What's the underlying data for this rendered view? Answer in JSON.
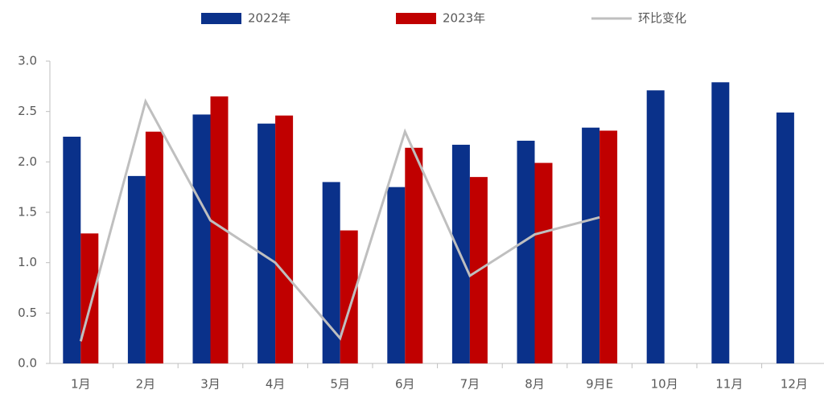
{
  "chart_data": {
    "type": "bar",
    "categories": [
      "1月",
      "2月",
      "3月",
      "4月",
      "5月",
      "6月",
      "7月",
      "8月",
      "9月E",
      "10月",
      "11月",
      "12月"
    ],
    "series": [
      {
        "name": "2022年",
        "type": "bar",
        "color": "#0a318a",
        "values": [
          2.25,
          1.86,
          2.47,
          2.38,
          1.8,
          1.75,
          2.17,
          2.21,
          2.34,
          2.71,
          2.79,
          2.49
        ]
      },
      {
        "name": "2023年",
        "type": "bar",
        "color": "#c00000",
        "values": [
          1.29,
          2.3,
          2.65,
          2.46,
          1.32,
          2.14,
          1.85,
          1.99,
          2.31,
          null,
          null,
          null
        ]
      },
      {
        "name": "环比变化",
        "type": "line",
        "color": "#bfbfbf",
        "values": [
          0.22,
          2.6,
          1.42,
          1.0,
          0.25,
          2.3,
          0.87,
          1.28,
          1.45,
          null,
          null,
          null
        ]
      }
    ],
    "ylim": [
      0,
      3
    ],
    "yticks": [
      {
        "value": 0,
        "label": "0.0"
      },
      0.5,
      {
        "value": 1,
        "label": "1.0"
      },
      1.5,
      {
        "value": 2,
        "label": "2.0"
      },
      2.5,
      {
        "value": 3,
        "label": "3.0"
      }
    ]
  }
}
